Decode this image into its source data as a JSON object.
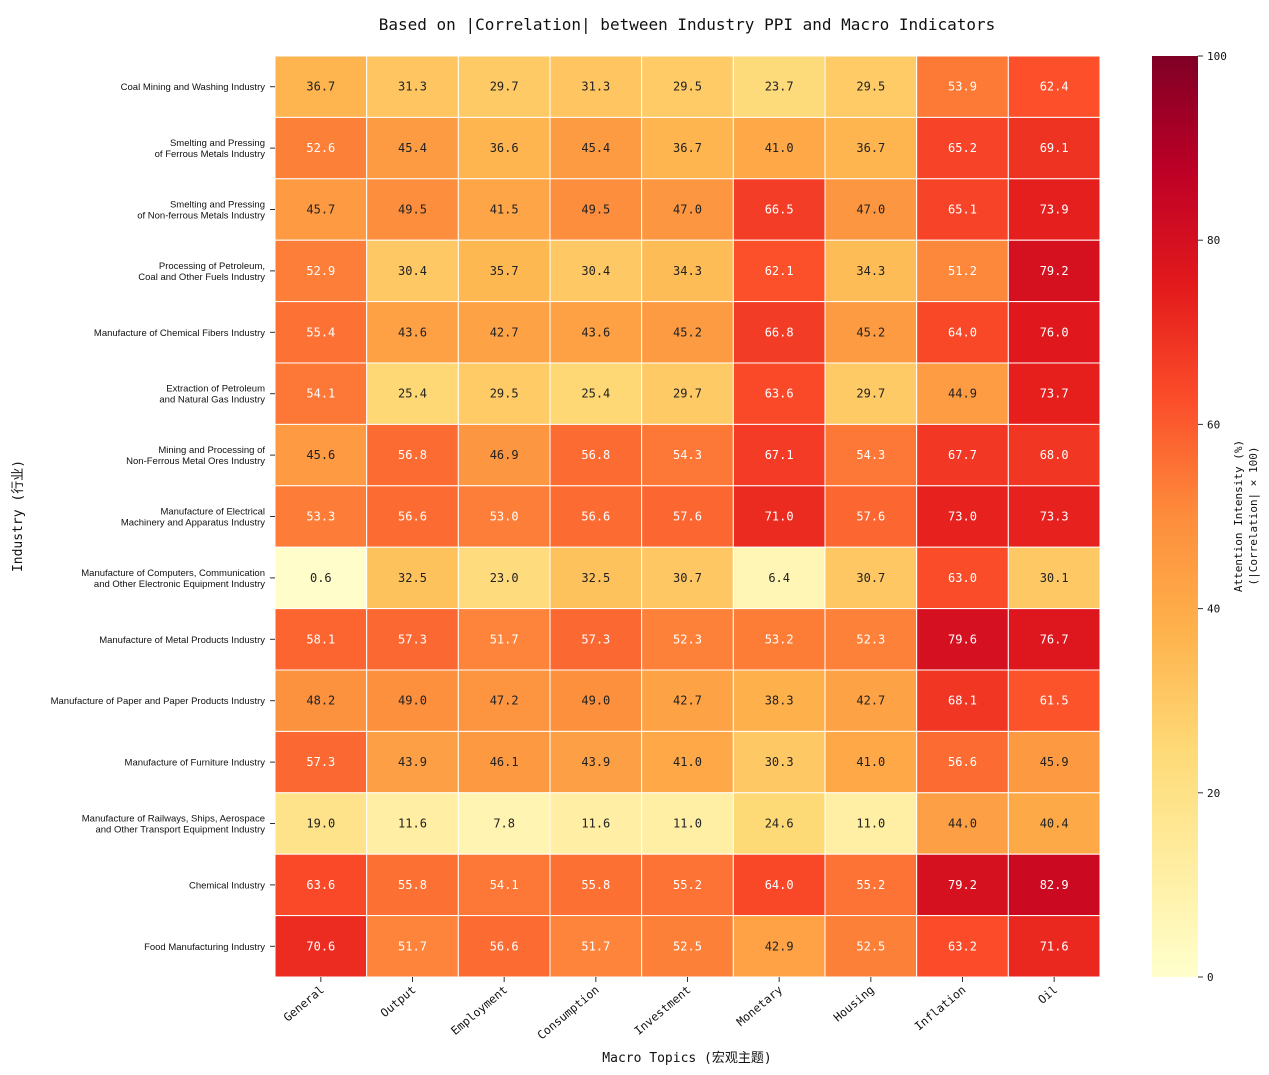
{
  "chart_data": {
    "type": "heatmap",
    "title": "Based on |Correlation| between Industry PPI and Macro Indicators",
    "xlabel": "Macro Topics (宏观主题)",
    "ylabel": "Industry (行业)",
    "colorbar_label_line1": "Attention Intensity (%)",
    "colorbar_label_line2": "(|Correlation| × 100)",
    "colorbar_ticks": [
      "0",
      "20",
      "40",
      "60",
      "80",
      "100"
    ],
    "vmin": 0,
    "vmax": 100,
    "colormap": [
      "#ffffcc",
      "#ffeda0",
      "#fed976",
      "#feb24c",
      "#fd8d3c",
      "#fc4e2a",
      "#e31a1c",
      "#bd0026",
      "#800026"
    ],
    "columns": [
      "General",
      "Output",
      "Employment",
      "Consumption",
      "Investment",
      "Monetary",
      "Housing",
      "Inflation",
      "Oil"
    ],
    "rows": [
      {
        "l1": "Coal Mining and Washing Industry",
        "l2": ""
      },
      {
        "l1": "Smelting and Pressing",
        "l2": "of Ferrous Metals Industry"
      },
      {
        "l1": "Smelting and Pressing",
        "l2": "of Non-ferrous Metals Industry"
      },
      {
        "l1": "Processing of Petroleum,",
        "l2": "Coal and Other Fuels Industry"
      },
      {
        "l1": "Manufacture of Chemical Fibers Industry",
        "l2": ""
      },
      {
        "l1": "Extraction of Petroleum",
        "l2": "and Natural Gas Industry"
      },
      {
        "l1": "Mining and Processing of",
        "l2": "Non-Ferrous Metal Ores Industry"
      },
      {
        "l1": "Manufacture of Electrical",
        "l2": "Machinery and Apparatus Industry"
      },
      {
        "l1": "Manufacture of Computers, Communication",
        "l2": "and Other Electronic Equipment Industry"
      },
      {
        "l1": "Manufacture of Metal Products Industry",
        "l2": ""
      },
      {
        "l1": "Manufacture of Paper and Paper Products Industry",
        "l2": ""
      },
      {
        "l1": "Manufacture of Furniture Industry",
        "l2": ""
      },
      {
        "l1": "Manufacture of Railways, Ships, Aerospace",
        "l2": "and Other Transport Equipment Industry"
      },
      {
        "l1": "Chemical Industry",
        "l2": ""
      },
      {
        "l1": "Food Manufacturing Industry",
        "l2": ""
      }
    ],
    "values": [
      [
        36.7,
        31.3,
        29.7,
        31.3,
        29.5,
        23.7,
        29.5,
        53.9,
        62.4
      ],
      [
        52.6,
        45.4,
        36.6,
        45.4,
        36.7,
        41.0,
        36.7,
        65.2,
        69.1
      ],
      [
        45.7,
        49.5,
        41.5,
        49.5,
        47.0,
        66.5,
        47.0,
        65.1,
        73.9
      ],
      [
        52.9,
        30.4,
        35.7,
        30.4,
        34.3,
        62.1,
        34.3,
        51.2,
        79.2
      ],
      [
        55.4,
        43.6,
        42.7,
        43.6,
        45.2,
        66.8,
        45.2,
        64.0,
        76.0
      ],
      [
        54.1,
        25.4,
        29.5,
        25.4,
        29.7,
        63.6,
        29.7,
        44.9,
        73.7
      ],
      [
        45.6,
        56.8,
        46.9,
        56.8,
        54.3,
        67.1,
        54.3,
        67.7,
        68.0
      ],
      [
        53.3,
        56.6,
        53.0,
        56.6,
        57.6,
        71.0,
        57.6,
        73.0,
        73.3
      ],
      [
        0.6,
        32.5,
        23.0,
        32.5,
        30.7,
        6.4,
        30.7,
        63.0,
        30.1
      ],
      [
        58.1,
        57.3,
        51.7,
        57.3,
        52.3,
        53.2,
        52.3,
        79.6,
        76.7
      ],
      [
        48.2,
        49.0,
        47.2,
        49.0,
        42.7,
        38.3,
        42.7,
        68.1,
        61.5
      ],
      [
        57.3,
        43.9,
        46.1,
        43.9,
        41.0,
        30.3,
        41.0,
        56.6,
        45.9
      ],
      [
        19.0,
        11.6,
        7.8,
        11.6,
        11.0,
        24.6,
        11.0,
        44.0,
        40.4
      ],
      [
        63.6,
        55.8,
        54.1,
        55.8,
        55.2,
        64.0,
        55.2,
        79.2,
        82.9
      ],
      [
        70.6,
        51.7,
        56.6,
        51.7,
        52.5,
        42.9,
        52.5,
        63.2,
        71.6
      ]
    ]
  }
}
